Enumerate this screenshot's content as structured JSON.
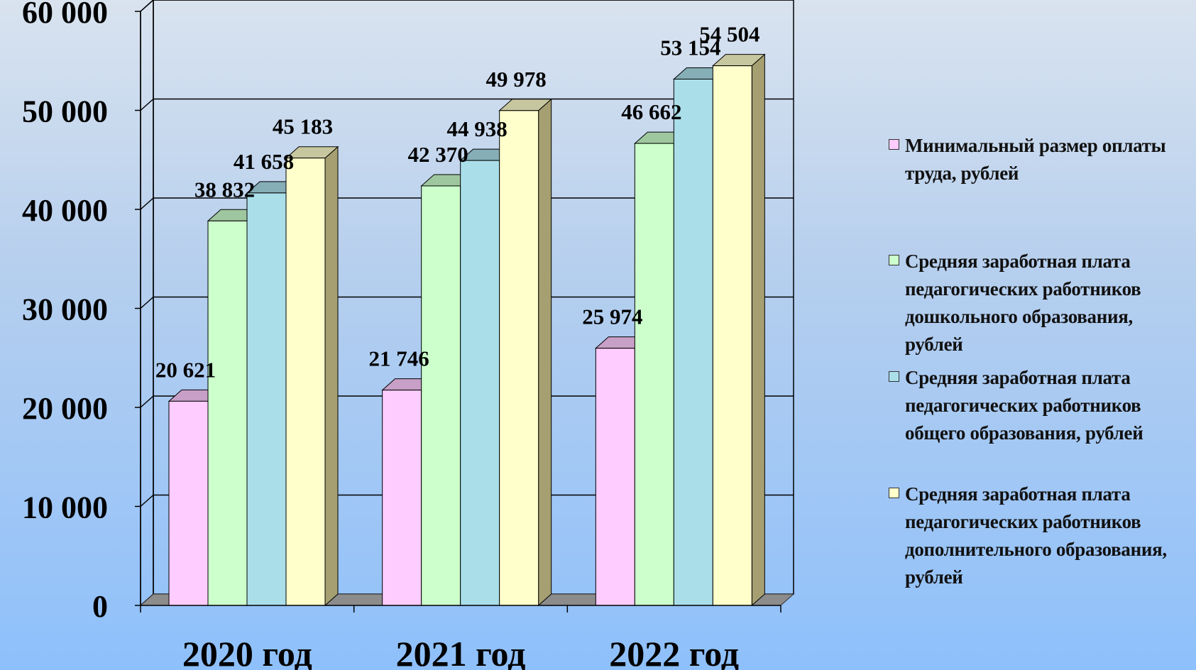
{
  "chart_data": {
    "type": "bar",
    "categories": [
      "2020 год",
      "2021 год",
      "2022 год"
    ],
    "ylim": [
      0,
      60000
    ],
    "yticks": [
      "0",
      "10 000",
      "20 000",
      "30 000",
      "40 000",
      "50 000",
      "60 000"
    ],
    "ytick_values": [
      0,
      10000,
      20000,
      30000,
      40000,
      50000,
      60000
    ],
    "grid": true,
    "legend_position": "right",
    "series": [
      {
        "name": "Минимальный размер оплаты труда, рублей",
        "color": "#ffccff",
        "values": [
          20621,
          21746,
          25974
        ],
        "labels": [
          "20 621",
          "21 746",
          "25 974"
        ]
      },
      {
        "name": "Средняя заработная плата педагогических работников дошкольного образования, рублей",
        "color": "#ccffcc",
        "values": [
          38832,
          42370,
          46662
        ],
        "labels": [
          "38 832",
          "42 370",
          "46 662"
        ]
      },
      {
        "name": "Средняя заработная плата педагогических работников общего образования, рублей",
        "color": "#aadfea",
        "values": [
          41658,
          44938,
          53154
        ],
        "labels": [
          "41 658",
          "44 938",
          "53 154"
        ]
      },
      {
        "name": "Средняя заработная плата педагогических работников дополнительного образования, рублей",
        "color": "#ffffcc",
        "values": [
          45183,
          49978,
          54504
        ],
        "labels": [
          "45 183",
          "49 978",
          "54 504"
        ]
      }
    ]
  }
}
